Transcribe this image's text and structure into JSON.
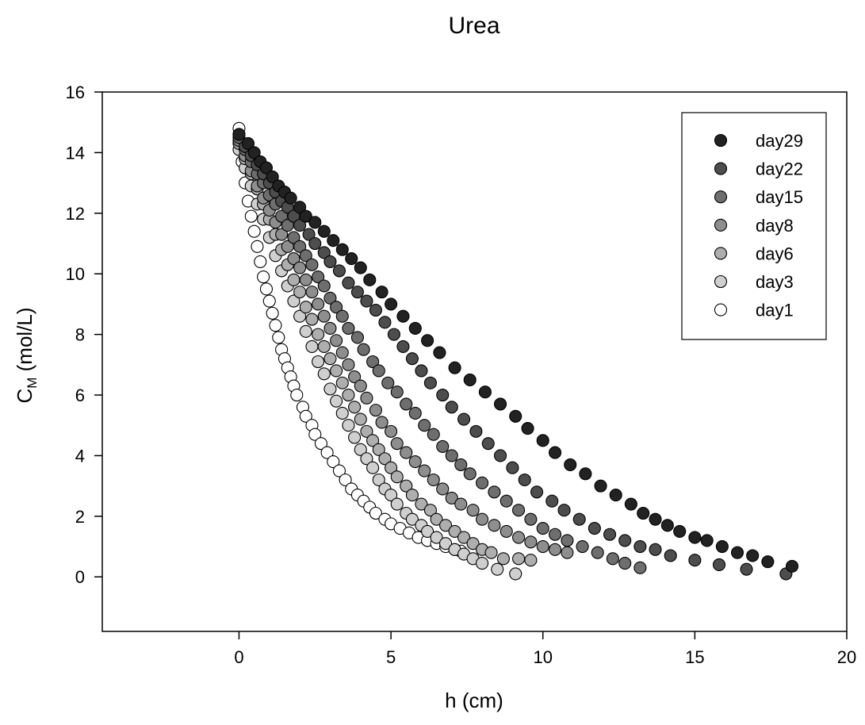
{
  "chart_data": {
    "type": "scatter",
    "title": "Urea",
    "xlabel": "h (cm)",
    "ylabel_main": "C",
    "ylabel_sub": "M",
    "ylabel_rest": " (mol/L)",
    "xlim": [
      -4.5,
      20
    ],
    "ylim": [
      -1.8,
      16
    ],
    "x_ticks": [
      0,
      5,
      10,
      15,
      20
    ],
    "x_tick_labels": [
      "0",
      "5",
      "10",
      "15",
      "20"
    ],
    "y_ticks": [
      0,
      2,
      4,
      6,
      8,
      10,
      12,
      14,
      16
    ],
    "y_tick_labels": [
      "0",
      "2",
      "4",
      "6",
      "8",
      "10",
      "12",
      "14",
      "16"
    ],
    "grid": false,
    "legend_position": "top-right",
    "series": [
      {
        "name": "day29",
        "color": "#222222",
        "points": [
          [
            0.0,
            14.6
          ],
          [
            0.3,
            14.3
          ],
          [
            0.5,
            14.0
          ],
          [
            0.7,
            13.7
          ],
          [
            0.9,
            13.5
          ],
          [
            1.1,
            13.2
          ],
          [
            1.3,
            12.9
          ],
          [
            1.5,
            12.7
          ],
          [
            1.7,
            12.5
          ],
          [
            2.0,
            12.2
          ],
          [
            2.2,
            11.9
          ],
          [
            2.5,
            11.7
          ],
          [
            2.8,
            11.4
          ],
          [
            3.1,
            11.1
          ],
          [
            3.4,
            10.8
          ],
          [
            3.7,
            10.5
          ],
          [
            4.0,
            10.2
          ],
          [
            4.3,
            9.8
          ],
          [
            4.7,
            9.4
          ],
          [
            5.0,
            9.0
          ],
          [
            5.4,
            8.6
          ],
          [
            5.8,
            8.2
          ],
          [
            6.2,
            7.8
          ],
          [
            6.6,
            7.4
          ],
          [
            7.1,
            6.9
          ],
          [
            7.6,
            6.5
          ],
          [
            8.1,
            6.1
          ],
          [
            8.6,
            5.7
          ],
          [
            9.1,
            5.3
          ],
          [
            9.5,
            4.9
          ],
          [
            10.0,
            4.5
          ],
          [
            10.4,
            4.1
          ],
          [
            10.9,
            3.7
          ],
          [
            11.4,
            3.4
          ],
          [
            11.9,
            3.0
          ],
          [
            12.4,
            2.7
          ],
          [
            12.9,
            2.4
          ],
          [
            13.3,
            2.1
          ],
          [
            13.7,
            1.9
          ],
          [
            14.1,
            1.7
          ],
          [
            14.5,
            1.5
          ],
          [
            15.0,
            1.3
          ],
          [
            15.4,
            1.2
          ],
          [
            15.9,
            1.0
          ],
          [
            16.4,
            0.8
          ],
          [
            16.9,
            0.7
          ],
          [
            17.4,
            0.5
          ],
          [
            18.2,
            0.35
          ]
        ]
      },
      {
        "name": "day22",
        "color": "#4d4d4d",
        "points": [
          [
            0.0,
            14.6
          ],
          [
            0.2,
            14.2
          ],
          [
            0.4,
            13.9
          ],
          [
            0.6,
            13.6
          ],
          [
            0.8,
            13.3
          ],
          [
            1.0,
            13.0
          ],
          [
            1.2,
            12.7
          ],
          [
            1.4,
            12.4
          ],
          [
            1.6,
            12.2
          ],
          [
            1.8,
            11.9
          ],
          [
            2.0,
            11.6
          ],
          [
            2.3,
            11.3
          ],
          [
            2.5,
            11.0
          ],
          [
            2.8,
            10.7
          ],
          [
            3.0,
            10.4
          ],
          [
            3.3,
            10.1
          ],
          [
            3.6,
            9.7
          ],
          [
            3.9,
            9.4
          ],
          [
            4.2,
            9.1
          ],
          [
            4.5,
            8.8
          ],
          [
            4.8,
            8.4
          ],
          [
            5.1,
            8.0
          ],
          [
            5.4,
            7.6
          ],
          [
            5.7,
            7.2
          ],
          [
            6.0,
            6.8
          ],
          [
            6.3,
            6.4
          ],
          [
            6.7,
            6.0
          ],
          [
            7.0,
            5.6
          ],
          [
            7.4,
            5.2
          ],
          [
            7.8,
            4.8
          ],
          [
            8.2,
            4.4
          ],
          [
            8.6,
            4.0
          ],
          [
            9.0,
            3.6
          ],
          [
            9.4,
            3.2
          ],
          [
            9.8,
            2.8
          ],
          [
            10.3,
            2.5
          ],
          [
            10.7,
            2.2
          ],
          [
            11.2,
            1.9
          ],
          [
            11.7,
            1.6
          ],
          [
            12.2,
            1.4
          ],
          [
            12.7,
            1.2
          ],
          [
            13.2,
            1.0
          ],
          [
            13.7,
            0.9
          ],
          [
            14.2,
            0.7
          ],
          [
            15.0,
            0.55
          ],
          [
            15.8,
            0.4
          ],
          [
            16.7,
            0.25
          ],
          [
            18.0,
            0.1
          ]
        ]
      },
      {
        "name": "day15",
        "color": "#6e6e6e",
        "points": [
          [
            0.0,
            14.5
          ],
          [
            0.2,
            14.1
          ],
          [
            0.4,
            13.7
          ],
          [
            0.6,
            13.3
          ],
          [
            0.8,
            13.0
          ],
          [
            1.0,
            12.6
          ],
          [
            1.2,
            12.3
          ],
          [
            1.4,
            11.9
          ],
          [
            1.6,
            11.6
          ],
          [
            1.8,
            11.2
          ],
          [
            2.0,
            10.9
          ],
          [
            2.2,
            10.6
          ],
          [
            2.4,
            10.3
          ],
          [
            2.6,
            9.9
          ],
          [
            2.8,
            9.6
          ],
          [
            3.0,
            9.2
          ],
          [
            3.2,
            8.9
          ],
          [
            3.4,
            8.6
          ],
          [
            3.6,
            8.2
          ],
          [
            3.9,
            7.9
          ],
          [
            4.1,
            7.5
          ],
          [
            4.4,
            7.1
          ],
          [
            4.6,
            6.8
          ],
          [
            4.9,
            6.4
          ],
          [
            5.2,
            6.1
          ],
          [
            5.5,
            5.7
          ],
          [
            5.8,
            5.4
          ],
          [
            6.1,
            5.0
          ],
          [
            6.4,
            4.7
          ],
          [
            6.7,
            4.3
          ],
          [
            7.0,
            4.0
          ],
          [
            7.3,
            3.7
          ],
          [
            7.6,
            3.4
          ],
          [
            8.0,
            3.1
          ],
          [
            8.4,
            2.8
          ],
          [
            8.8,
            2.5
          ],
          [
            9.2,
            2.2
          ],
          [
            9.6,
            1.9
          ],
          [
            10.0,
            1.6
          ],
          [
            10.4,
            1.4
          ],
          [
            10.8,
            1.2
          ],
          [
            11.3,
            1.0
          ],
          [
            11.8,
            0.8
          ],
          [
            12.3,
            0.6
          ],
          [
            12.7,
            0.45
          ],
          [
            13.2,
            0.3
          ]
        ]
      },
      {
        "name": "day8",
        "color": "#8e8e8e",
        "points": [
          [
            0.0,
            14.4
          ],
          [
            0.2,
            13.9
          ],
          [
            0.4,
            13.4
          ],
          [
            0.6,
            12.9
          ],
          [
            0.8,
            12.5
          ],
          [
            1.0,
            12.1
          ],
          [
            1.2,
            11.7
          ],
          [
            1.4,
            11.3
          ],
          [
            1.6,
            10.9
          ],
          [
            1.8,
            10.5
          ],
          [
            2.0,
            10.2
          ],
          [
            2.2,
            9.8
          ],
          [
            2.4,
            9.4
          ],
          [
            2.6,
            9.0
          ],
          [
            2.8,
            8.6
          ],
          [
            3.0,
            8.2
          ],
          [
            3.2,
            7.8
          ],
          [
            3.4,
            7.4
          ],
          [
            3.6,
            7.0
          ],
          [
            3.8,
            6.6
          ],
          [
            4.0,
            6.3
          ],
          [
            4.2,
            5.9
          ],
          [
            4.5,
            5.5
          ],
          [
            4.7,
            5.1
          ],
          [
            5.0,
            4.8
          ],
          [
            5.2,
            4.4
          ],
          [
            5.5,
            4.1
          ],
          [
            5.8,
            3.8
          ],
          [
            6.1,
            3.5
          ],
          [
            6.4,
            3.2
          ],
          [
            6.7,
            2.9
          ],
          [
            7.0,
            2.6
          ],
          [
            7.3,
            2.4
          ],
          [
            7.7,
            2.2
          ],
          [
            8.0,
            1.9
          ],
          [
            8.4,
            1.7
          ],
          [
            8.8,
            1.5
          ],
          [
            9.2,
            1.3
          ],
          [
            9.6,
            1.15
          ],
          [
            10.0,
            1.0
          ],
          [
            10.4,
            0.9
          ],
          [
            10.8,
            0.8
          ]
        ]
      },
      {
        "name": "day6",
        "color": "#aeaeae",
        "points": [
          [
            0.0,
            14.3
          ],
          [
            0.2,
            13.8
          ],
          [
            0.4,
            13.3
          ],
          [
            0.6,
            12.8
          ],
          [
            0.8,
            12.3
          ],
          [
            1.0,
            11.8
          ],
          [
            1.2,
            11.3
          ],
          [
            1.4,
            10.8
          ],
          [
            1.6,
            10.3
          ],
          [
            1.8,
            9.8
          ],
          [
            2.0,
            9.4
          ],
          [
            2.2,
            8.9
          ],
          [
            2.4,
            8.5
          ],
          [
            2.6,
            8.0
          ],
          [
            2.8,
            7.6
          ],
          [
            3.0,
            7.2
          ],
          [
            3.2,
            6.8
          ],
          [
            3.4,
            6.4
          ],
          [
            3.6,
            6.0
          ],
          [
            3.8,
            5.6
          ],
          [
            4.0,
            5.2
          ],
          [
            4.2,
            4.8
          ],
          [
            4.4,
            4.5
          ],
          [
            4.6,
            4.2
          ],
          [
            4.8,
            3.9
          ],
          [
            5.0,
            3.6
          ],
          [
            5.2,
            3.3
          ],
          [
            5.5,
            3.0
          ],
          [
            5.7,
            2.7
          ],
          [
            6.0,
            2.4
          ],
          [
            6.3,
            2.2
          ],
          [
            6.5,
            1.9
          ],
          [
            6.8,
            1.7
          ],
          [
            7.1,
            1.5
          ],
          [
            7.4,
            1.3
          ],
          [
            7.7,
            1.1
          ],
          [
            8.0,
            0.9
          ],
          [
            8.3,
            0.8
          ],
          [
            8.7,
            0.6
          ],
          [
            9.2,
            0.6
          ],
          [
            9.6,
            0.55
          ]
        ]
      },
      {
        "name": "day3",
        "color": "#cfcfcf",
        "points": [
          [
            0.0,
            14.1
          ],
          [
            0.2,
            13.5
          ],
          [
            0.4,
            12.9
          ],
          [
            0.6,
            12.3
          ],
          [
            0.8,
            11.8
          ],
          [
            1.0,
            11.2
          ],
          [
            1.2,
            10.6
          ],
          [
            1.4,
            10.1
          ],
          [
            1.6,
            9.6
          ],
          [
            1.8,
            9.1
          ],
          [
            2.0,
            8.6
          ],
          [
            2.2,
            8.1
          ],
          [
            2.4,
            7.6
          ],
          [
            2.6,
            7.1
          ],
          [
            2.8,
            6.7
          ],
          [
            3.0,
            6.2
          ],
          [
            3.2,
            5.8
          ],
          [
            3.4,
            5.4
          ],
          [
            3.6,
            5.0
          ],
          [
            3.8,
            4.6
          ],
          [
            4.0,
            4.2
          ],
          [
            4.2,
            3.9
          ],
          [
            4.4,
            3.6
          ],
          [
            4.6,
            3.2
          ],
          [
            4.8,
            2.9
          ],
          [
            5.0,
            2.7
          ],
          [
            5.2,
            2.4
          ],
          [
            5.5,
            2.1
          ],
          [
            5.7,
            1.9
          ],
          [
            6.0,
            1.7
          ],
          [
            6.2,
            1.5
          ],
          [
            6.5,
            1.3
          ],
          [
            6.8,
            1.1
          ],
          [
            7.1,
            0.9
          ],
          [
            7.4,
            0.75
          ],
          [
            7.7,
            0.6
          ],
          [
            8.0,
            0.45
          ],
          [
            8.5,
            0.25
          ],
          [
            9.1,
            0.1
          ]
        ]
      },
      {
        "name": "day1",
        "color": "#ffffff",
        "points": [
          [
            0.0,
            14.8
          ],
          [
            0.1,
            13.7
          ],
          [
            0.2,
            13.0
          ],
          [
            0.3,
            12.4
          ],
          [
            0.4,
            11.9
          ],
          [
            0.5,
            11.4
          ],
          [
            0.6,
            10.9
          ],
          [
            0.7,
            10.4
          ],
          [
            0.8,
            9.9
          ],
          [
            0.9,
            9.5
          ],
          [
            1.0,
            9.1
          ],
          [
            1.1,
            8.7
          ],
          [
            1.2,
            8.3
          ],
          [
            1.3,
            7.9
          ],
          [
            1.4,
            7.5
          ],
          [
            1.5,
            7.2
          ],
          [
            1.6,
            6.9
          ],
          [
            1.7,
            6.6
          ],
          [
            1.8,
            6.3
          ],
          [
            1.9,
            6.0
          ],
          [
            2.1,
            5.6
          ],
          [
            2.2,
            5.3
          ],
          [
            2.4,
            5.0
          ],
          [
            2.5,
            4.7
          ],
          [
            2.7,
            4.4
          ],
          [
            2.9,
            4.1
          ],
          [
            3.1,
            3.8
          ],
          [
            3.3,
            3.5
          ],
          [
            3.5,
            3.2
          ],
          [
            3.7,
            2.9
          ],
          [
            3.9,
            2.7
          ],
          [
            4.1,
            2.5
          ],
          [
            4.3,
            2.3
          ],
          [
            4.5,
            2.1
          ],
          [
            4.8,
            1.9
          ],
          [
            5.0,
            1.75
          ],
          [
            5.3,
            1.6
          ],
          [
            5.6,
            1.45
          ],
          [
            5.9,
            1.3
          ],
          [
            6.2,
            1.2
          ],
          [
            6.5,
            1.1
          ],
          [
            6.8,
            1.0
          ],
          [
            7.1,
            0.9
          ],
          [
            7.3,
            0.85
          ]
        ]
      }
    ]
  }
}
